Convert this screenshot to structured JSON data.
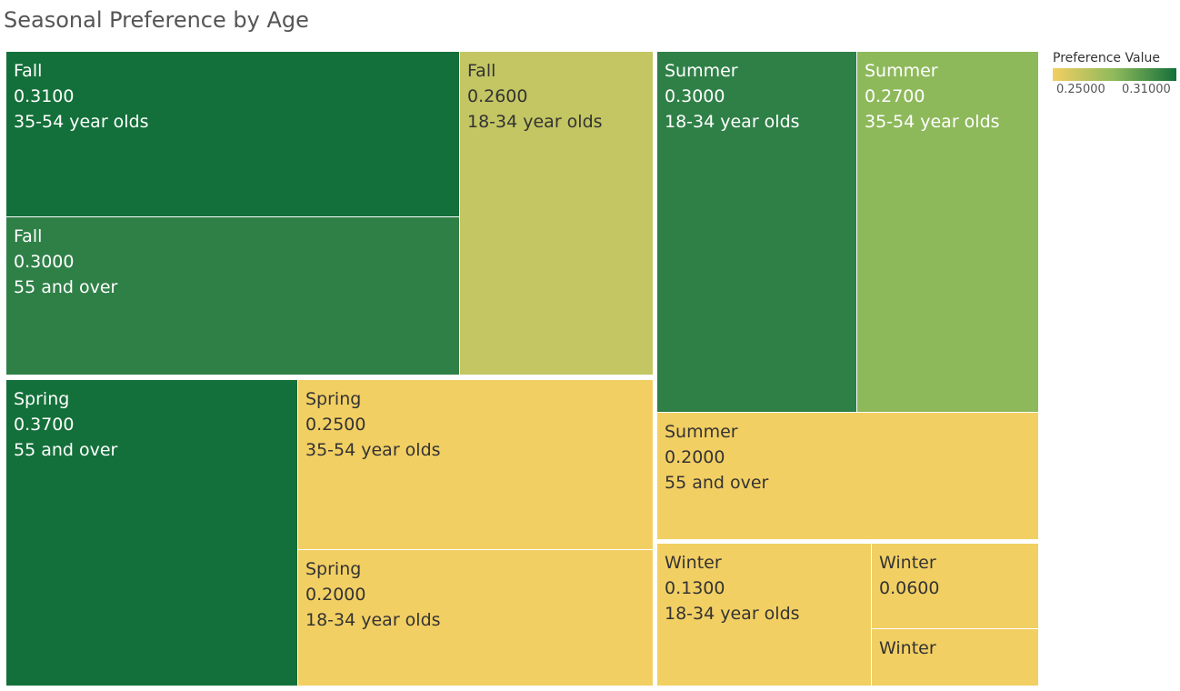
{
  "title": "Seasonal Preference by Age",
  "legend": {
    "title": "Preference Value",
    "min_label": "0.25000",
    "max_label": "0.31000",
    "color_low": "#F2CF63",
    "color_high": "#14703A"
  },
  "chart_data": {
    "type": "treemap",
    "title": "Seasonal Preference by Age",
    "color_measure": "Preference Value",
    "groups": [
      {
        "name": "Fall",
        "items": [
          {
            "season": "Fall",
            "value": 0.31,
            "value_label": "0.3100",
            "age": "35-54 year olds",
            "color": "#14703A"
          },
          {
            "season": "Fall",
            "value": 0.3,
            "value_label": "0.3000",
            "age": "55 and over",
            "color": "#2F8047"
          },
          {
            "season": "Fall",
            "value": 0.26,
            "value_label": "0.2600",
            "age": "18-34 year olds",
            "color": "#C3C662"
          }
        ]
      },
      {
        "name": "Summer",
        "items": [
          {
            "season": "Summer",
            "value": 0.3,
            "value_label": "0.3000",
            "age": "18-34 year olds",
            "color": "#2F8047"
          },
          {
            "season": "Summer",
            "value": 0.27,
            "value_label": "0.2700",
            "age": "35-54 year olds",
            "color": "#8EB95B"
          },
          {
            "season": "Summer",
            "value": 0.2,
            "value_label": "0.2000",
            "age": "55 and over",
            "color": "#F2CF63"
          }
        ]
      },
      {
        "name": "Spring",
        "items": [
          {
            "season": "Spring",
            "value": 0.37,
            "value_label": "0.3700",
            "age": "55 and over",
            "color": "#14703A"
          },
          {
            "season": "Spring",
            "value": 0.25,
            "value_label": "0.2500",
            "age": "35-54 year olds",
            "color": "#F2CF63"
          },
          {
            "season": "Spring",
            "value": 0.2,
            "value_label": "0.2000",
            "age": "18-34 year olds",
            "color": "#F2CF63"
          }
        ]
      },
      {
        "name": "Winter",
        "items": [
          {
            "season": "Winter",
            "value": 0.13,
            "value_label": "0.1300",
            "age": "18-34 year olds",
            "color": "#F2CF63"
          },
          {
            "season": "Winter",
            "value": 0.06,
            "value_label": "0.0600",
            "age": "",
            "color": "#F2CF63"
          },
          {
            "season": "Winter",
            "value_label": "",
            "age": "",
            "color": "#F2CF63"
          }
        ]
      }
    ]
  }
}
